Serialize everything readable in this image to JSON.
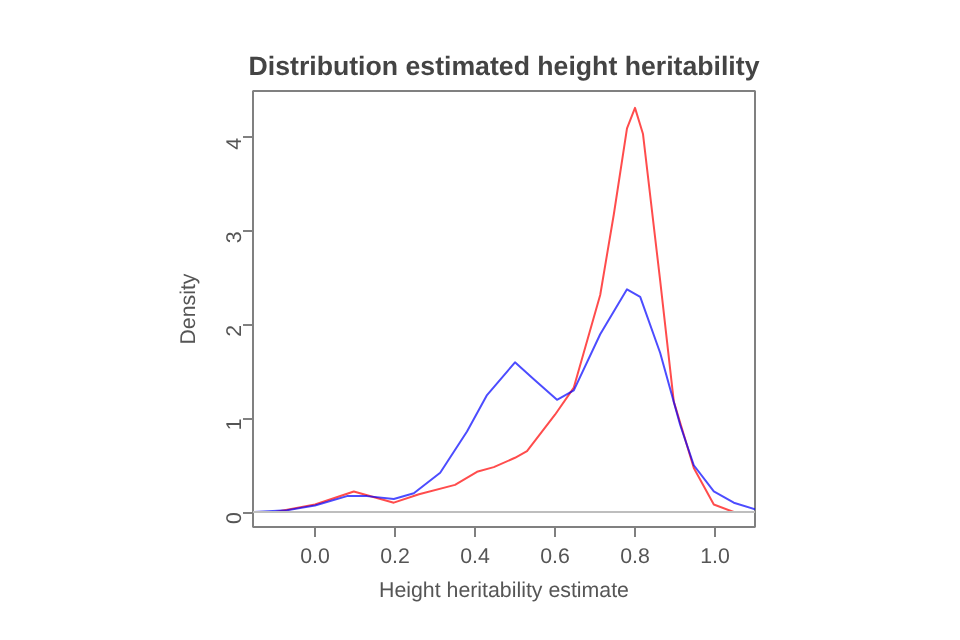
{
  "chart_data": {
    "type": "line",
    "title": "Distribution estimated height heritability",
    "xlabel": "Height heritability estimate",
    "ylabel": "Density",
    "xlim": [
      -0.155,
      1.1
    ],
    "ylim": [
      -0.16,
      4.5
    ],
    "xticks": [
      {
        "value": 0,
        "label": "0.0"
      },
      0.2,
      0.4,
      0.6,
      0.8,
      {
        "value": 1,
        "label": "1.0"
      }
    ],
    "yticks": [
      0,
      1,
      2,
      3,
      4
    ],
    "grid": false,
    "marker": "none",
    "line_style": "solid",
    "ref_lines": [
      {
        "axis": "y",
        "value": 0,
        "color": "#bebebe"
      }
    ],
    "series": [
      {
        "color": "#ff0000",
        "x": [
          -0.1,
          0,
          0.097,
          0.197,
          0.26,
          0.35,
          0.405,
          0.447,
          0.5,
          0.53,
          0.6,
          0.647,
          0.713,
          0.747,
          0.78,
          0.8,
          0.82,
          0.863,
          0.897,
          0.947,
          0.997,
          1.047
        ],
        "values": [
          0,
          0.08,
          0.22,
          0.1,
          0.19,
          0.29,
          0.43,
          0.48,
          0.58,
          0.65,
          1.04,
          1.33,
          2.32,
          3.18,
          4.1,
          4.32,
          4.04,
          2.47,
          1.18,
          0.47,
          0.08,
          0
        ]
      },
      {
        "color": "#0000ff",
        "x": [
          -0.153,
          -0.07,
          0,
          0.08,
          0.13,
          0.197,
          0.247,
          0.313,
          0.38,
          0.43,
          0.5,
          0.547,
          0.605,
          0.647,
          0.713,
          0.78,
          0.813,
          0.863,
          0.913,
          0.947,
          0.997,
          1.047,
          1.1
        ],
        "values": [
          0,
          0.02,
          0.07,
          0.17,
          0.17,
          0.14,
          0.2,
          0.42,
          0.86,
          1.25,
          1.6,
          1.42,
          1.2,
          1.3,
          1.9,
          2.38,
          2.3,
          1.7,
          0.93,
          0.5,
          0.22,
          0.1,
          0.03
        ]
      }
    ]
  }
}
